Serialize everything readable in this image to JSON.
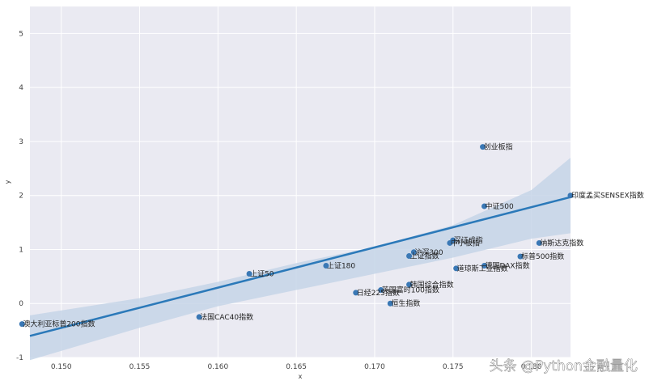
{
  "chart_data": {
    "type": "scatter",
    "title": "",
    "xlabel": "x",
    "ylabel": "y",
    "xlim": [
      0.148,
      0.1825
    ],
    "ylim": [
      -1,
      5.5
    ],
    "xticks": [
      0.15,
      0.155,
      0.16,
      0.165,
      0.17,
      0.175,
      0.18
    ],
    "xtick_labels": [
      "0.150",
      "0.155",
      "0.160",
      "0.165",
      "0.170",
      "0.175",
      "0.180"
    ],
    "yticks": [
      -1,
      0,
      1,
      2,
      3,
      4,
      5
    ],
    "ytick_labels": [
      "-1",
      "0",
      "1",
      "2",
      "3",
      "4",
      "5"
    ],
    "grid": true,
    "colors": {
      "point": "#3a78b5",
      "line": "#2b79b9",
      "band": "#c5d5e8",
      "background": "#eaeaf2",
      "grid": "#ffffff"
    },
    "points": [
      {
        "label": "创业板指",
        "x": 0.1769,
        "y": 2.9
      },
      {
        "label": "中证500",
        "x": 0.177,
        "y": 1.8
      },
      {
        "label": "印度孟买SENSEX指数",
        "x": 0.1825,
        "y": 2.0
      },
      {
        "label": "深证成指",
        "x": 0.175,
        "y": 1.17
      },
      {
        "label": "中小板指",
        "x": 0.1748,
        "y": 1.12
      },
      {
        "label": "纳斯达克指数",
        "x": 0.1805,
        "y": 1.12
      },
      {
        "label": "沪深300",
        "x": 0.1725,
        "y": 0.95
      },
      {
        "label": "上证指数",
        "x": 0.1722,
        "y": 0.88
      },
      {
        "label": "标普500指数",
        "x": 0.1793,
        "y": 0.87
      },
      {
        "label": "上证180",
        "x": 0.1669,
        "y": 0.7
      },
      {
        "label": "德国DAX指数",
        "x": 0.177,
        "y": 0.7
      },
      {
        "label": "道琼斯工业指数",
        "x": 0.1752,
        "y": 0.65
      },
      {
        "label": "上证50",
        "x": 0.162,
        "y": 0.55
      },
      {
        "label": "韩国综合指数",
        "x": 0.1722,
        "y": 0.35
      },
      {
        "label": "英国富时100指数",
        "x": 0.1704,
        "y": 0.25
      },
      {
        "label": "日经225指数",
        "x": 0.1688,
        "y": 0.2
      },
      {
        "label": "恒生指数",
        "x": 0.171,
        "y": 0.0
      },
      {
        "label": "法国CAC40指数",
        "x": 0.1588,
        "y": -0.25
      },
      {
        "label": "澳大利亚标普200指数",
        "x": 0.1475,
        "y": -0.38
      }
    ],
    "regression": {
      "x": [
        0.148,
        0.1825
      ],
      "y": [
        -0.6,
        1.97
      ]
    },
    "ci_band": {
      "x": [
        0.148,
        0.155,
        0.16,
        0.165,
        0.17,
        0.175,
        0.18,
        0.1825
      ],
      "upper": [
        -0.22,
        0.1,
        0.4,
        0.75,
        1.05,
        1.45,
        2.1,
        2.7
      ],
      "lower": [
        -1.05,
        -0.45,
        -0.05,
        0.25,
        0.55,
        0.85,
        1.2,
        1.3
      ]
    }
  },
  "watermark": "头条 @Python金融量化"
}
